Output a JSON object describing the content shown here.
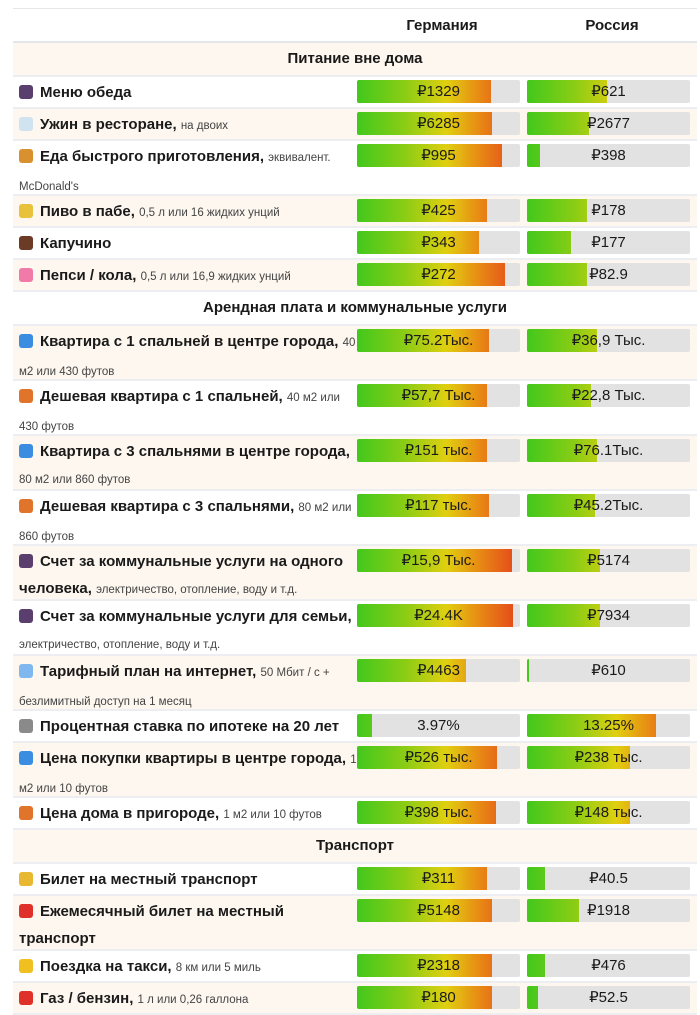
{
  "columns": [
    "Германия",
    "Россия"
  ],
  "colors": {
    "cream": "#fdf7ef",
    "green": "#42c81c",
    "yellow": "#e1cf10",
    "red": "#e4421c",
    "track": "#e2e2e2"
  },
  "sections": [
    {
      "title": "Питание вне дома",
      "cream": true,
      "rows": [
        {
          "icon": "bento-box-icon",
          "iconColor": "#5a3e6e",
          "label": "Меню обеда",
          "note": "",
          "double": false,
          "cream": false,
          "de": {
            "value": "₽1329",
            "fill": 0.82
          },
          "ru": {
            "value": "₽621",
            "fill": 0.49
          }
        },
        {
          "icon": "champagne-glasses-icon",
          "iconColor": "#cfe3f0",
          "label": "Ужин в ресторане,",
          "note": "на двоих",
          "double": false,
          "cream": true,
          "de": {
            "value": "₽6285",
            "fill": 0.83
          },
          "ru": {
            "value": "₽2677",
            "fill": 0.38
          }
        },
        {
          "icon": "burger-icon",
          "iconColor": "#d9902e",
          "label": "Еда быстрого приготовления,",
          "note": "эквивалент. McDonald's",
          "double": true,
          "cream": false,
          "de": {
            "value": "₽995",
            "fill": 0.89
          },
          "ru": {
            "value": "₽398",
            "fill": 0.08
          }
        },
        {
          "icon": "beer-mugs-icon",
          "iconColor": "#e8c23a",
          "label": "Пиво в пабе,",
          "note": "0,5 л или 16 жидких унций",
          "double": false,
          "cream": true,
          "de": {
            "value": "₽425",
            "fill": 0.8
          },
          "ru": {
            "value": "₽178",
            "fill": 0.37
          }
        },
        {
          "icon": "coffee-cup-icon",
          "iconColor": "#6b3b26",
          "label": "Капучино",
          "note": "",
          "double": false,
          "cream": false,
          "de": {
            "value": "₽343",
            "fill": 0.75
          },
          "ru": {
            "value": "₽177",
            "fill": 0.27
          }
        },
        {
          "icon": "soda-cup-icon",
          "iconColor": "#f07aa8",
          "label": "Пепси / кола,",
          "note": "0,5 л или 16,9 жидких унций",
          "double": false,
          "cream": true,
          "de": {
            "value": "₽272",
            "fill": 0.91
          },
          "ru": {
            "value": "₽82.9",
            "fill": 0.37
          }
        }
      ]
    },
    {
      "title": "Арендная плата и коммунальные услуги",
      "cream": false,
      "rows": [
        {
          "icon": "city-buildings-icon",
          "iconColor": "#3a8de0",
          "label": "Квартира с 1 спальней в центре города,",
          "note": "40 м2 или 430 футов",
          "double": true,
          "cream": true,
          "de": {
            "value": "₽75.2Тыс.",
            "fill": 0.81
          },
          "ru": {
            "value": "₽36,9 Тыс.",
            "fill": 0.43
          }
        },
        {
          "icon": "house-icon",
          "iconColor": "#e0742a",
          "label": "Дешевая квартира с 1 спальней,",
          "note": "40 м2 или 430 футов",
          "double": true,
          "cream": false,
          "de": {
            "value": "₽57,7 Тыс.",
            "fill": 0.8
          },
          "ru": {
            "value": "₽22,8 Тыс.",
            "fill": 0.39
          }
        },
        {
          "icon": "city-buildings-icon",
          "iconColor": "#3a8de0",
          "label": "Квартира с 3 спальнями в центре города,",
          "note": "80 м2 или 860 футов",
          "double": true,
          "cream": true,
          "de": {
            "value": "₽151 тыс.",
            "fill": 0.8
          },
          "ru": {
            "value": "₽76.1Тыс.",
            "fill": 0.43
          }
        },
        {
          "icon": "house-icon",
          "iconColor": "#e0742a",
          "label": "Дешевая квартира с 3 спальнями,",
          "note": "80 м2 или 860 футов",
          "double": true,
          "cream": false,
          "de": {
            "value": "₽117 тыс.",
            "fill": 0.81
          },
          "ru": {
            "value": "₽45.2Тыс.",
            "fill": 0.42
          }
        },
        {
          "icon": "electric-plug-icon",
          "iconColor": "#5a3e6e",
          "label": "Счет за коммунальные услуги на одного человека,",
          "note": "электричество, отопление, воду и т.д.",
          "double": true,
          "cream": true,
          "de": {
            "value": "₽15,9 Тыс.",
            "fill": 0.95
          },
          "ru": {
            "value": "₽5174",
            "fill": 0.45
          }
        },
        {
          "icon": "electric-plug-icon",
          "iconColor": "#5a3e6e",
          "label": "Счет за коммунальные услуги для семьи,",
          "note": "электричество, отопление, воду и т.д.",
          "double": true,
          "cream": false,
          "de": {
            "value": "₽24.4K",
            "fill": 0.96
          },
          "ru": {
            "value": "₽7934",
            "fill": 0.45
          }
        },
        {
          "icon": "globe-icon",
          "iconColor": "#7fb8ee",
          "label": "Тарифный план на интернет,",
          "note": "50 Мбит / с + безлимитный доступ на 1 месяц",
          "double": true,
          "cream": true,
          "de": {
            "value": "₽4463",
            "fill": 0.67
          },
          "ru": {
            "value": "₽610",
            "fill": 0.01
          }
        },
        {
          "icon": "bank-icon",
          "iconColor": "#8a8a8a",
          "label": "Процентная ставка по ипотеке на 20 лет",
          "note": "",
          "double": false,
          "cream": false,
          "de": {
            "value": "3.97%",
            "fill": 0.09
          },
          "ru": {
            "value": "13.25%",
            "fill": 0.79
          }
        },
        {
          "icon": "city-buildings-icon",
          "iconColor": "#3a8de0",
          "label": "Цена покупки квартиры в центре города,",
          "note": "1 м2 или 10 футов",
          "double": true,
          "cream": true,
          "de": {
            "value": "₽526 тыс.",
            "fill": 0.86
          },
          "ru": {
            "value": "₽238 тыс.",
            "fill": 0.63
          }
        },
        {
          "icon": "house-icon",
          "iconColor": "#e0742a",
          "label": "Цена дома в пригороде,",
          "note": "1 м2 или 10 футов",
          "double": false,
          "cream": false,
          "de": {
            "value": "₽398 тыс.",
            "fill": 0.85
          },
          "ru": {
            "value": "₽148 тыс.",
            "fill": 0.63
          }
        }
      ]
    },
    {
      "title": "Транспорт",
      "cream": true,
      "rows": [
        {
          "icon": "bus-icon",
          "iconColor": "#e8b830",
          "label": "Билет на местный транспорт",
          "note": "",
          "double": false,
          "cream": false,
          "de": {
            "value": "₽311",
            "fill": 0.8
          },
          "ru": {
            "value": "₽40.5",
            "fill": 0.11
          }
        },
        {
          "icon": "ticket-icon",
          "iconColor": "#e0302a",
          "label": "Ежемесячный билет на местный транспорт",
          "note": "",
          "double": true,
          "cream": true,
          "de": {
            "value": "₽5148",
            "fill": 0.83
          },
          "ru": {
            "value": "₽1918",
            "fill": 0.32
          }
        },
        {
          "icon": "taxi-icon",
          "iconColor": "#f0c020",
          "label": "Поездка на такси,",
          "note": "8 км или 5 миль",
          "double": false,
          "cream": false,
          "de": {
            "value": "₽2318",
            "fill": 0.83
          },
          "ru": {
            "value": "₽476",
            "fill": 0.11
          }
        },
        {
          "icon": "fuel-pump-icon",
          "iconColor": "#e0302a",
          "label": "Газ / бензин,",
          "note": "1 л или 0,26 галлона",
          "double": false,
          "cream": true,
          "de": {
            "value": "₽180",
            "fill": 0.83
          },
          "ru": {
            "value": "₽52.5",
            "fill": 0.07
          }
        }
      ]
    }
  ]
}
